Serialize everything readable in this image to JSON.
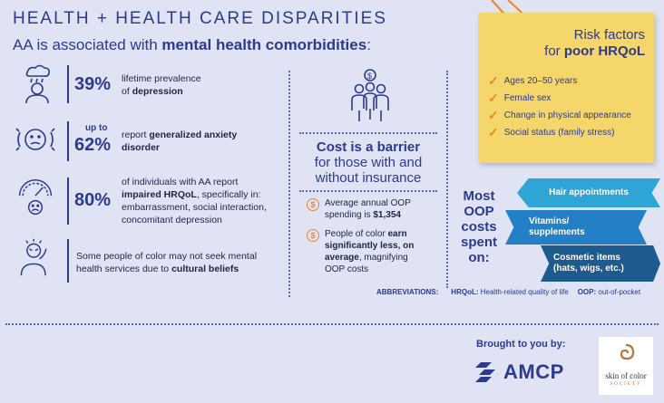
{
  "header": {
    "title": "HEALTH + HEALTH CARE DISPARITIES",
    "subtitle_prefix": "AA is associated with ",
    "subtitle_bold": "mental health comorbidities",
    "subtitle_suffix": ":"
  },
  "stats": {
    "depression": {
      "pct": "39%",
      "line1": "lifetime prevalence",
      "line2_prefix": "of ",
      "line2_bold": "depression"
    },
    "anxiety": {
      "upto": "up to",
      "pct": "62%",
      "line1_prefix": "report ",
      "line1_bold": "generalized anxiety",
      "line2": "disorder"
    },
    "hrqol": {
      "pct": "80%",
      "line1": "of individuals with AA report",
      "line2_bold": "impaired HRQoL",
      "line2_suffix": ", specifically in:",
      "line3": "embarrassment, social interaction,",
      "line4": "concomitant depression"
    },
    "cultural": {
      "line1": "Some people of color may not seek mental",
      "line2_prefix": "health services due to ",
      "line2_bold": "cultural beliefs"
    }
  },
  "cost": {
    "title_bold": "Cost is a barrier",
    "title_line2": "for those with and",
    "title_line3": "without insurance",
    "bullet1_line1": "Average annual OOP",
    "bullet1_line2_prefix": "spending is ",
    "bullet1_line2_bold": "$1,354",
    "bullet2_line1_prefix": "People of color ",
    "bullet2_line1_bold": "earn",
    "bullet2_line2_bold": "significantly less, on",
    "bullet2_line3_bold": "average",
    "bullet2_line3_suffix": ", magnifying",
    "bullet2_line4": "OOP costs",
    "dollar_symbol": "$"
  },
  "risk": {
    "heading_line1": "Risk factors",
    "heading_line2_prefix": "for ",
    "heading_line2_bold": "poor HRQoL",
    "items": [
      "Ages 20–50 years",
      "Female sex",
      "Change in physical appearance",
      "Social status (family stress)"
    ],
    "check_symbol": "✓",
    "colors": {
      "card": "#f5d66a",
      "check": "#e58b2a"
    }
  },
  "oop": {
    "most_lines": [
      "Most",
      "OOP",
      "costs",
      "spent",
      "on:"
    ],
    "ribbons": [
      {
        "line1": "Hair appointments",
        "line2": "",
        "color": "#2fa5d6"
      },
      {
        "line1": "Vitamins/",
        "line2": "supplements",
        "color": "#2380c6"
      },
      {
        "line1": "Cosmetic items",
        "line2": "(hats, wigs, etc.)",
        "color": "#1d5a8e"
      }
    ]
  },
  "abbreviations": {
    "label": "ABBREVIATIONS:",
    "hrqol_key": "HRQoL:",
    "hrqol_val": " Health-related quality of life",
    "oop_key": "OOP:",
    "oop_val": " out-of-pocket"
  },
  "footer": {
    "brought": "Brought to you by:",
    "amcp": "AMCP",
    "soc_line1": "skin of color",
    "soc_line2": "SOCIETY"
  },
  "colors": {
    "background": "#dfe3f4",
    "navy": "#2e3a8c",
    "orange": "#e58b2a"
  }
}
